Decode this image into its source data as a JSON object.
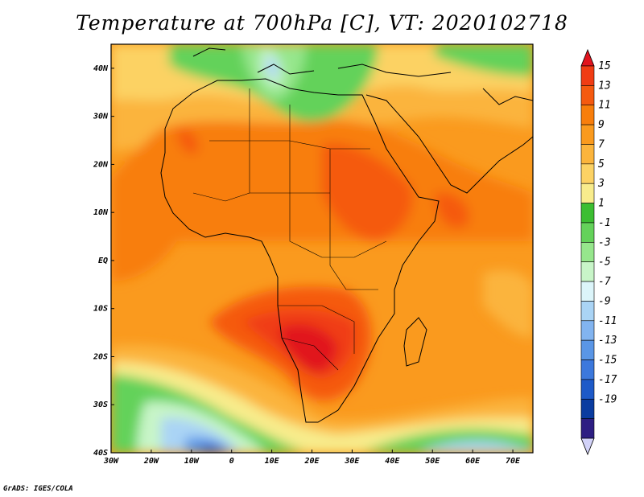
{
  "title": "Temperature at 700hPa [C], VT: 2020102718",
  "credit": "GrADS: IGES/COLA",
  "map": {
    "projection": "latlon",
    "lon_range": [
      -30,
      75
    ],
    "lat_range": [
      -40,
      45
    ],
    "lon_ticks": [
      {
        "value": -30,
        "label": "30W"
      },
      {
        "value": -20,
        "label": "20W"
      },
      {
        "value": -10,
        "label": "10W"
      },
      {
        "value": 0,
        "label": "0"
      },
      {
        "value": 10,
        "label": "10E"
      },
      {
        "value": 20,
        "label": "20E"
      },
      {
        "value": 30,
        "label": "30E"
      },
      {
        "value": 40,
        "label": "40E"
      },
      {
        "value": 50,
        "label": "50E"
      },
      {
        "value": 60,
        "label": "60E"
      },
      {
        "value": 70,
        "label": "70E"
      }
    ],
    "lat_ticks": [
      {
        "value": 40,
        "label": "40N"
      },
      {
        "value": 30,
        "label": "30N"
      },
      {
        "value": 20,
        "label": "20N"
      },
      {
        "value": 10,
        "label": "10N"
      },
      {
        "value": 0,
        "label": "EQ"
      },
      {
        "value": -10,
        "label": "10S"
      },
      {
        "value": -20,
        "label": "20S"
      },
      {
        "value": -30,
        "label": "30S"
      },
      {
        "value": -40,
        "label": "40S"
      }
    ]
  },
  "colorbar": {
    "levels": [
      15,
      13,
      11,
      9,
      7,
      5,
      3,
      1,
      -1,
      -3,
      -5,
      -7,
      -9,
      -11,
      -13,
      -15,
      -17,
      -19
    ],
    "labels": [
      "15",
      "13",
      "11",
      "9",
      "7",
      "5",
      "3",
      "1",
      "-1",
      "-3",
      "-5",
      "-7",
      "-9",
      "-11",
      "-13",
      "-15",
      "-17",
      "-19"
    ],
    "colors": [
      "#e1141e",
      "#f03c14",
      "#f55a10",
      "#f87e0c",
      "#fa9a1e",
      "#fbb43c",
      "#fcd264",
      "#f8ec8c",
      "#3cbe32",
      "#64d25a",
      "#96e68c",
      "#c8f5c8",
      "#dcf5fa",
      "#aad4f5",
      "#82b4f0",
      "#5a96e6",
      "#3c78dc",
      "#1e5ac8",
      "#0a3ca0",
      "#2d1e82",
      "#d2d2f8"
    ]
  },
  "legend_colors": {
    "warm_top": "#e1141e",
    "cold_bottom": "#d2d2f8"
  }
}
